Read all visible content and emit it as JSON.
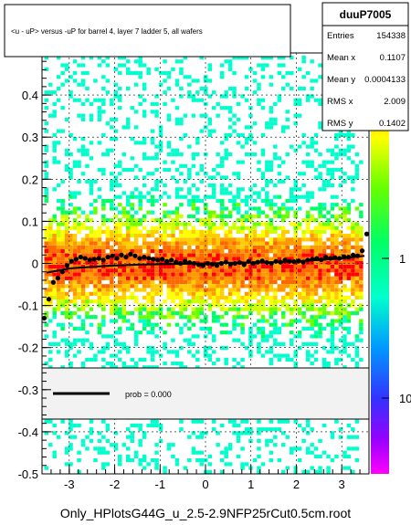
{
  "chart_data": {
    "type": "heatmap",
    "title": "<u - uP>       versus  -uP for barrel 4, layer 7 ladder 5, all wafers",
    "footer": "Only_HPlotsG44G_u_2.5-2.9NFP25rCut0.5cm.root",
    "xlim": [
      -3.6,
      3.6
    ],
    "ylim": [
      -0.5,
      0.5
    ],
    "x_ticks": [
      -3,
      -2,
      -1,
      0,
      1,
      2,
      3
    ],
    "y_ticks": [
      -0.5,
      -0.4,
      -0.3,
      -0.2,
      -0.1,
      0,
      0.1,
      0.2,
      0.3,
      0.4
    ],
    "y_tick_labels": [
      "-0.5",
      "-0.4",
      "-0.3",
      "-0.2",
      "-0.1",
      "0",
      "0.1",
      "0.2",
      "0.3",
      "0.4"
    ],
    "z_tick_labels": [
      "1",
      "10"
    ],
    "grid": true,
    "stats": {
      "name": "duuP7005",
      "rows": [
        {
          "label": "Entries",
          "value": "154338"
        },
        {
          "label": "Mean x",
          "value": "0.1107"
        },
        {
          "label": "Mean y",
          "value": "0.0004133"
        },
        {
          "label": "RMS x",
          "value": "2.009"
        },
        {
          "label": "RMS y",
          "value": "0.1402"
        }
      ]
    },
    "fit_legend": {
      "label": "prob = 0.000"
    },
    "profile": {
      "x": [
        -3.55,
        -3.45,
        -3.35,
        -3.25,
        -3.15,
        -3.05,
        -2.95,
        -2.85,
        -2.75,
        -2.65,
        -2.55,
        -2.45,
        -2.35,
        -2.25,
        -2.15,
        -2.05,
        -1.95,
        -1.85,
        -1.75,
        -1.65,
        -1.55,
        -1.45,
        -1.35,
        -1.25,
        -1.15,
        -1.05,
        -0.95,
        -0.85,
        -0.75,
        -0.65,
        -0.55,
        -0.45,
        -0.35,
        -0.25,
        -0.15,
        -0.05,
        0.05,
        0.15,
        0.25,
        0.35,
        0.45,
        0.55,
        0.65,
        0.75,
        0.85,
        0.95,
        1.05,
        1.15,
        1.25,
        1.35,
        1.45,
        1.55,
        1.65,
        1.75,
        1.85,
        1.95,
        2.05,
        2.15,
        2.25,
        2.35,
        2.45,
        2.55,
        2.65,
        2.75,
        2.85,
        2.95,
        3.05,
        3.15,
        3.25,
        3.35,
        3.45,
        3.55
      ],
      "y": [
        -0.13,
        -0.085,
        -0.045,
        -0.035,
        -0.02,
        -0.005,
        0.005,
        0.01,
        0.015,
        0.012,
        0.008,
        0.01,
        0.012,
        0.008,
        0.015,
        0.018,
        0.012,
        0.02,
        0.015,
        0.022,
        0.018,
        0.012,
        0.015,
        0.012,
        0.01,
        0.008,
        0.01,
        0.005,
        0.008,
        0.003,
        0.0,
        0.005,
        0.002,
        0.0,
        -0.003,
        -0.005,
        0.0,
        -0.002,
        -0.005,
        0.0,
        0.003,
        -0.002,
        0.0,
        0.002,
        -0.003,
        0.005,
        0.0,
        0.003,
        0.006,
        0.002,
        0.0,
        0.005,
        0.003,
        0.008,
        0.005,
        0.004,
        0.006,
        0.003,
        0.008,
        0.01,
        0.012,
        0.009,
        0.015,
        0.012,
        0.014,
        0.012,
        0.016,
        0.015,
        0.02,
        0.018,
        0.03,
        0.07
      ]
    },
    "fit_curve": {
      "x": [
        -3.5,
        -3.0,
        -2.5,
        -2.0,
        -1.5,
        -1.0,
        -0.5,
        0.0,
        0.5,
        1.0,
        1.5,
        2.0,
        2.5,
        3.0,
        3.5
      ],
      "y": [
        -0.022,
        -0.012,
        -0.008,
        -0.005,
        -0.003,
        -0.002,
        -0.001,
        0.0,
        0.001,
        0.002,
        0.003,
        0.005,
        0.008,
        0.012,
        0.018
      ]
    },
    "z_colors": [
      "#ff0000",
      "#ff6600",
      "#ff9900",
      "#ffcc00",
      "#ffff00",
      "#ccff00",
      "#66ff00",
      "#00ff66",
      "#00ffcc",
      "#00ccff",
      "#0099ff",
      "#0066ff",
      "#3333ff",
      "#6600ff",
      "#9900ff",
      "#cc00ff",
      "#ff00ff"
    ]
  }
}
